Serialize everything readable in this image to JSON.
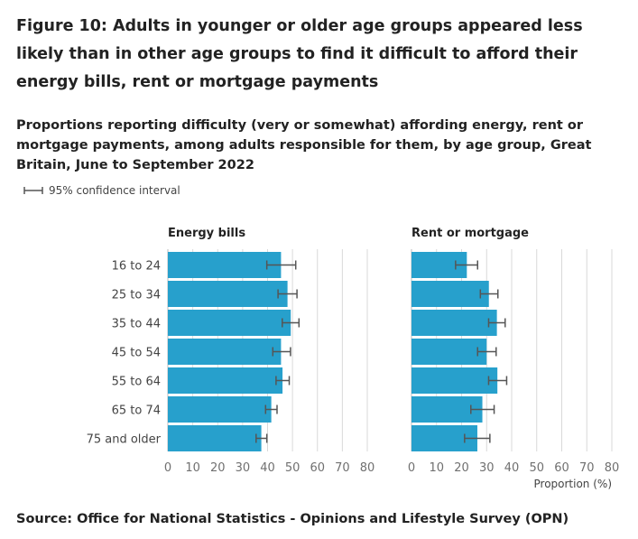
{
  "title": "Figure 10: Adults in younger or older age groups appeared less likely than in other age groups to find it difficult to afford their energy bills, rent or mortgage payments",
  "subtitle": "Proportions reporting difficulty (very or somewhat) affording energy, rent or mortgage payments, among adults responsible for them, by age group, Great Britain, June to September 2022",
  "legend_label": "95% confidence interval",
  "source": "Source: Office for National Statistics - Opinions and Lifestyle Survey (OPN)",
  "colors": {
    "bar": "#27a0cc",
    "error_bar": "#555555",
    "grid": "#d9d9d9"
  },
  "chart_data": [
    {
      "type": "bar",
      "orientation": "horizontal",
      "title": "Energy bills",
      "categories": [
        "16 to 24",
        "25 to 34",
        "35 to 44",
        "45 to 54",
        "55 to 64",
        "65 to 74",
        "75 and older"
      ],
      "values": [
        45.4,
        48.0,
        49.3,
        45.4,
        46.0,
        41.5,
        37.5
      ],
      "ci_lower": [
        39.7,
        44.2,
        45.9,
        42.1,
        43.4,
        39.2,
        35.4
      ],
      "ci_upper": [
        51.3,
        51.8,
        52.6,
        49.2,
        48.7,
        43.8,
        39.7
      ],
      "xlim": [
        0,
        80
      ],
      "xticks": [
        "0",
        "10",
        "20",
        "30",
        "40",
        "50",
        "60",
        "70",
        "80"
      ],
      "xlabel": "",
      "grid": true
    },
    {
      "type": "bar",
      "orientation": "horizontal",
      "title": "Rent or mortgage",
      "categories": [
        "16 to 24",
        "25 to 34",
        "35 to 44",
        "45 to 54",
        "55 to 64",
        "65 to 74",
        "75 and older"
      ],
      "values": [
        22.1,
        30.9,
        34.1,
        30.0,
        34.3,
        28.3,
        26.3
      ],
      "ci_lower": [
        17.6,
        27.5,
        30.8,
        26.4,
        30.8,
        23.7,
        21.2
      ],
      "ci_upper": [
        26.4,
        34.5,
        37.4,
        33.8,
        38.0,
        33.0,
        31.3
      ],
      "xlim": [
        0,
        80
      ],
      "xticks": [
        "0",
        "10",
        "20",
        "30",
        "40",
        "50",
        "60",
        "70",
        "80"
      ],
      "xlabel": "Proportion (%)",
      "grid": true
    }
  ]
}
